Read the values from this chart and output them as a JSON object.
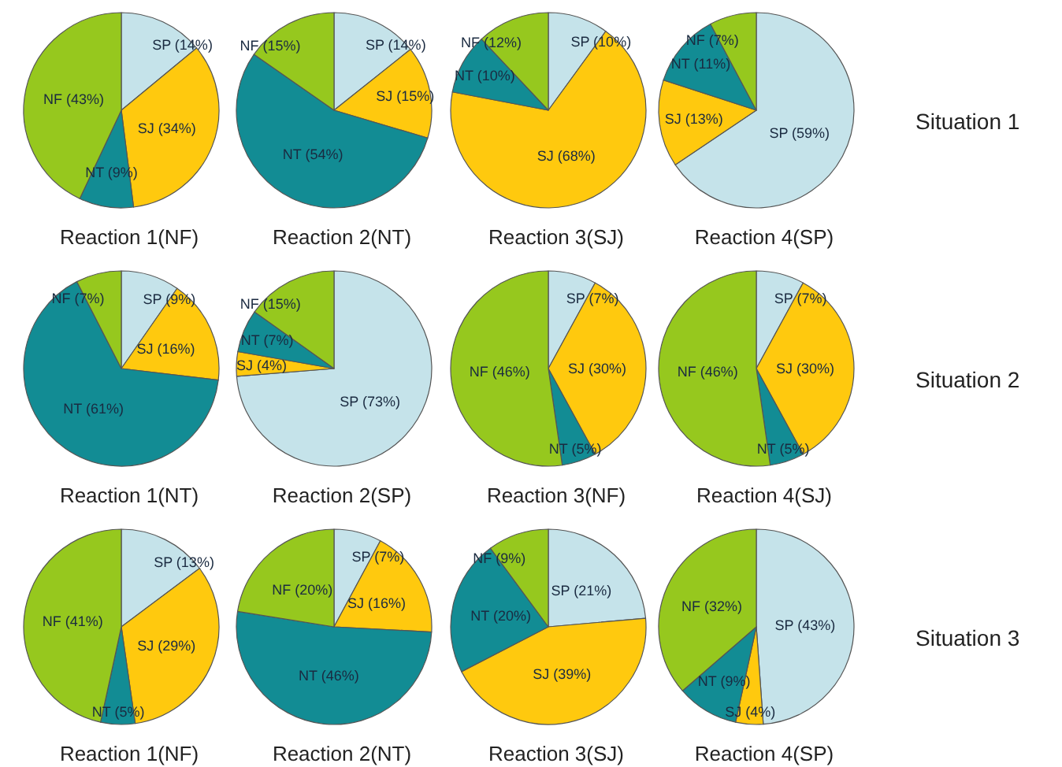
{
  "chart_data": [
    {
      "type": "pie",
      "title": "Reaction 1(NF)",
      "categories": [
        "SP (14%)",
        "SJ (34%)",
        "NT (9%)",
        "NF (43%)"
      ],
      "values": [
        14,
        34,
        9,
        43
      ],
      "colors": [
        "#c5e3ea",
        "#ffc90e",
        "#128c94",
        "#96c81e"
      ]
    },
    {
      "type": "pie",
      "title": "Reaction 2(NT)",
      "categories": [
        "SP (14%)",
        "SJ (15%)",
        "NT (54%)",
        "NF (15%)"
      ],
      "values": [
        14,
        15,
        54,
        15
      ],
      "colors": [
        "#c5e3ea",
        "#ffc90e",
        "#128c94",
        "#96c81e"
      ]
    },
    {
      "type": "pie",
      "title": "Reaction 3(SJ)",
      "categories": [
        "SP (10%)",
        "SJ (68%)",
        "NT (10%)",
        "NF (12%)"
      ],
      "values": [
        10,
        68,
        10,
        12
      ],
      "colors": [
        "#c5e3ea",
        "#ffc90e",
        "#128c94",
        "#96c81e"
      ]
    },
    {
      "type": "pie",
      "title": "Reaction 4(SP)",
      "categories": [
        "SP (59%)",
        "SJ (13%)",
        "NT (11%)",
        "NF (7%)"
      ],
      "values": [
        59,
        13,
        11,
        7
      ],
      "colors": [
        "#c5e3ea",
        "#ffc90e",
        "#128c94",
        "#96c81e"
      ],
      "annotations": [
        "Situation 1"
      ]
    },
    {
      "type": "pie",
      "title": "Reaction 1(NT)",
      "categories": [
        "SP (9%)",
        "SJ (16%)",
        "NT (61%)",
        "NF (7%)"
      ],
      "values": [
        9,
        16,
        61,
        7
      ],
      "colors": [
        "#c5e3ea",
        "#ffc90e",
        "#128c94",
        "#96c81e"
      ]
    },
    {
      "type": "pie",
      "title": "Reaction 2(SP)",
      "categories": [
        "SP (73%)",
        "SJ (4%)",
        "NT (7%)",
        "NF (15%)"
      ],
      "values": [
        73,
        4,
        7,
        15
      ],
      "colors": [
        "#c5e3ea",
        "#ffc90e",
        "#128c94",
        "#96c81e"
      ]
    },
    {
      "type": "pie",
      "title": "Reaction 3(NF)",
      "categories": [
        "SP (7%)",
        "SJ (30%)",
        "NT (5%)",
        "NF (46%)"
      ],
      "values": [
        7,
        30,
        5,
        46
      ],
      "colors": [
        "#c5e3ea",
        "#ffc90e",
        "#128c94",
        "#96c81e"
      ]
    },
    {
      "type": "pie",
      "title": "Reaction 4(SJ)",
      "categories": [
        "SP (7%)",
        "SJ (30%)",
        "NT (5%)",
        "NF (46%)"
      ],
      "values": [
        7,
        30,
        5,
        46
      ],
      "colors": [
        "#c5e3ea",
        "#ffc90e",
        "#128c94",
        "#96c81e"
      ],
      "annotations": [
        "Situation 2"
      ]
    },
    {
      "type": "pie",
      "title": "Reaction 1(NF)",
      "categories": [
        "SP (13%)",
        "SJ (29%)",
        "NT (5%)",
        "NF (41%)"
      ],
      "values": [
        13,
        29,
        5,
        41
      ],
      "colors": [
        "#c5e3ea",
        "#ffc90e",
        "#128c94",
        "#96c81e"
      ]
    },
    {
      "type": "pie",
      "title": "Reaction 2(NT)",
      "categories": [
        "SP (7%)",
        "SJ (16%)",
        "NT (46%)",
        "NF (20%)"
      ],
      "values": [
        7,
        16,
        46,
        20
      ],
      "colors": [
        "#c5e3ea",
        "#ffc90e",
        "#128c94",
        "#96c81e"
      ]
    },
    {
      "type": "pie",
      "title": "Reaction 3(SJ)",
      "categories": [
        "SP (21%)",
        "SJ (39%)",
        "NT (20%)",
        "NF (9%)"
      ],
      "values": [
        21,
        39,
        20,
        9
      ],
      "colors": [
        "#c5e3ea",
        "#ffc90e",
        "#128c94",
        "#96c81e"
      ]
    },
    {
      "type": "pie",
      "title": "Reaction 4(SP)",
      "categories": [
        "SP (43%)",
        "SJ (4%)",
        "NT (9%)",
        "NF (32%)"
      ],
      "values": [
        43,
        4,
        9,
        32
      ],
      "colors": [
        "#c5e3ea",
        "#ffc90e",
        "#128c94",
        "#96c81e"
      ],
      "annotations": [
        "Situation 3"
      ]
    }
  ]
}
